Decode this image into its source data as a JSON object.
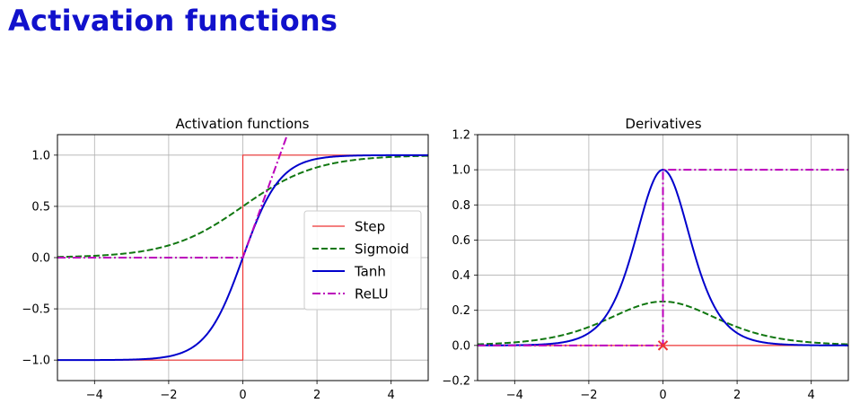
{
  "page": {
    "title": "Activation functions"
  },
  "chart_data": [
    {
      "type": "line",
      "title": "Activation functions",
      "xlabel": "",
      "ylabel": "",
      "xlim": [
        -5,
        5
      ],
      "ylim": [
        -1.2,
        1.2
      ],
      "xticks": [
        -4,
        -2,
        0,
        2,
        4
      ],
      "yticks": [
        -1.0,
        -0.5,
        0.0,
        0.5,
        1.0
      ],
      "xtick_labels": [
        "−4",
        "−2",
        "0",
        "2",
        "4"
      ],
      "ytick_labels": [
        "−1.0",
        "−0.5",
        "0.0",
        "0.5",
        "1.0"
      ],
      "grid": true,
      "legend": "center-right",
      "series": [
        {
          "name": "Step",
          "function": "step",
          "color": "#ee3333",
          "style": "solid",
          "width": 1.2
        },
        {
          "name": "Sigmoid",
          "function": "sigmoid",
          "color": "#117711",
          "style": "dashed",
          "width": 2
        },
        {
          "name": "Tanh",
          "function": "tanh",
          "color": "#0000cc",
          "style": "solid",
          "width": 2
        },
        {
          "name": "ReLU",
          "function": "relu",
          "color": "#bb00bb",
          "style": "dashdot",
          "width": 2
        }
      ]
    },
    {
      "type": "line",
      "title": "Derivatives",
      "xlabel": "",
      "ylabel": "",
      "xlim": [
        -5,
        5
      ],
      "ylim": [
        -0.2,
        1.2
      ],
      "xticks": [
        -4,
        -2,
        0,
        2,
        4
      ],
      "yticks": [
        -0.2,
        0.0,
        0.2,
        0.4,
        0.6,
        0.8,
        1.0,
        1.2
      ],
      "xtick_labels": [
        "−4",
        "−2",
        "0",
        "2",
        "4"
      ],
      "ytick_labels": [
        "−0.2",
        "0.0",
        "0.2",
        "0.4",
        "0.6",
        "0.8",
        "1.0",
        "1.2"
      ],
      "grid": true,
      "legend": "none",
      "series": [
        {
          "function": "step_derivative",
          "color": "#ee3333",
          "style": "solid",
          "width": 1.2
        },
        {
          "function": "sigmoid_derivative",
          "color": "#117711",
          "style": "dashed",
          "width": 2
        },
        {
          "function": "tanh_derivative",
          "color": "#0000cc",
          "style": "solid",
          "width": 2
        },
        {
          "function": "relu_derivative",
          "color": "#bb00bb",
          "style": "dashdot",
          "width": 2
        }
      ],
      "annotations": [
        {
          "x": 0,
          "y": 0,
          "marker": "x",
          "color": "#ee3333"
        }
      ]
    }
  ]
}
